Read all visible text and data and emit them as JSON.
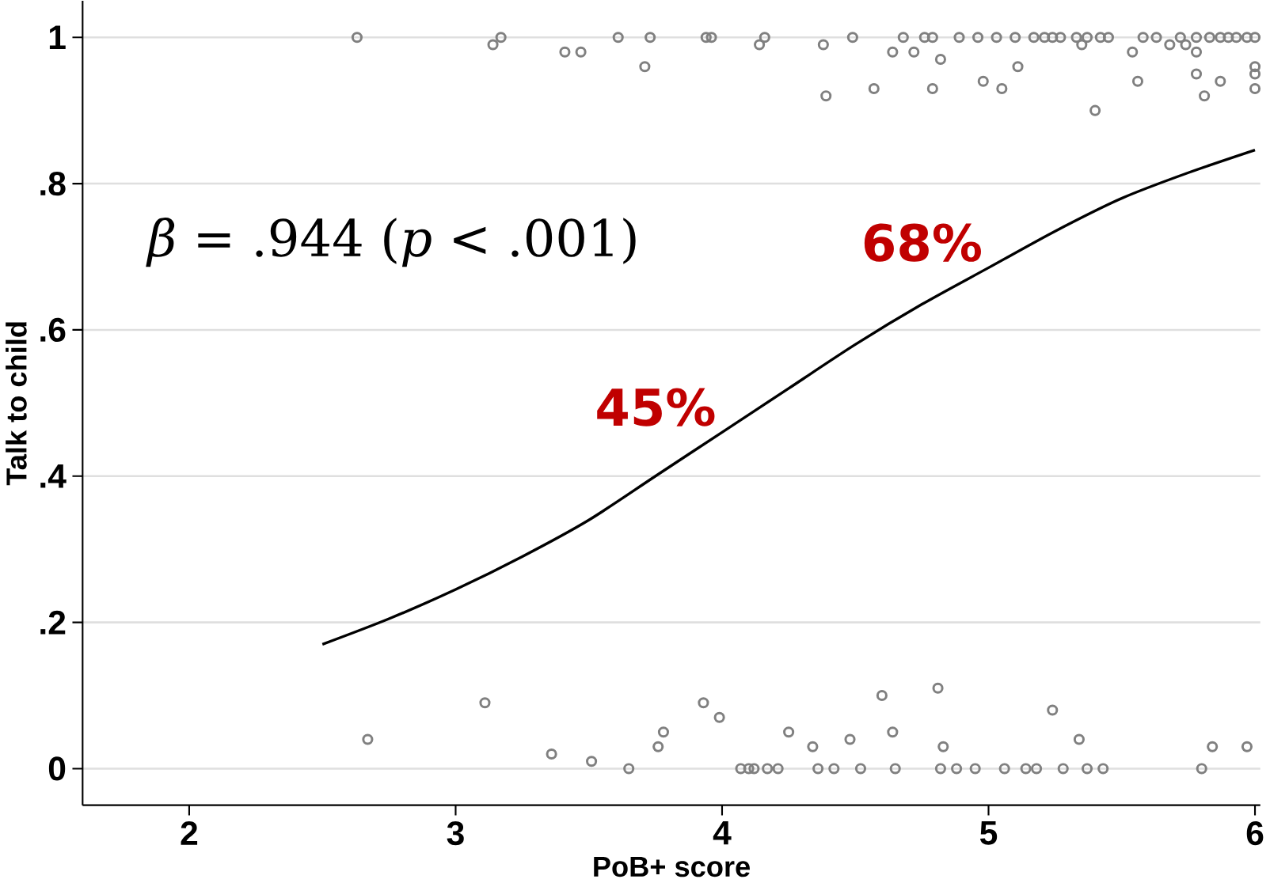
{
  "chart_data": {
    "type": "scatter",
    "xlabel": "PoB+ score",
    "ylabel": "Talk to child",
    "xlim": [
      1.6,
      6.02
    ],
    "ylim": [
      -0.05,
      1.05
    ],
    "xticks": [
      2,
      3,
      4,
      5,
      6
    ],
    "yticks": [
      0,
      {
        "value": 0.2,
        "label": ".2"
      },
      {
        "value": 0.4,
        "label": ".4"
      },
      {
        "value": 0.6,
        "label": ".6"
      },
      {
        "value": 0.8,
        "label": ".8"
      },
      1
    ],
    "grid": "y",
    "annotations": [
      "*β* = .944 (*p* < .001)",
      {
        "text": "45%",
        "x": 4,
        "y": 0.46
      },
      {
        "text": "68%",
        "x": 5,
        "y": 0.685
      }
    ],
    "series": [
      {
        "type": "scatter",
        "color": "#808080",
        "marker": "circle",
        "x": [
          2.63,
          3.14,
          3.17,
          3.41,
          3.47,
          3.61,
          3.73,
          3.71,
          3.94,
          3.96,
          4.14,
          4.16,
          4.38,
          4.39,
          4.49,
          4.57,
          4.64,
          4.68,
          4.72,
          4.76,
          4.79,
          4.82,
          4.79,
          4.89,
          4.96,
          5.03,
          4.98,
          5.05,
          5.1,
          5.11,
          5.17,
          5.21,
          5.24,
          5.27,
          5.33,
          5.35,
          5.37,
          5.42,
          5.45,
          5.4,
          5.54,
          5.56,
          5.58,
          5.63,
          5.68,
          5.72,
          5.74,
          5.78,
          5.78,
          5.78,
          5.81,
          5.87,
          5.83,
          5.87,
          5.9,
          5.93,
          5.97,
          6,
          6,
          6,
          6,
          2.67,
          3.11,
          3.36,
          3.51,
          3.65,
          3.76,
          3.78,
          3.93,
          3.99,
          4.07,
          4.1,
          4.12,
          4.17,
          4.21,
          4.25,
          4.34,
          4.36,
          4.42,
          4.48,
          4.52,
          4.6,
          4.64,
          4.65,
          4.81,
          4.83,
          4.82,
          4.88,
          4.95,
          5.06,
          5.14,
          5.18,
          5.24,
          5.28,
          5.34,
          5.37,
          5.43,
          5.8,
          5.84,
          5.97
        ],
        "values": [
          1,
          0.99,
          1,
          0.98,
          0.98,
          1,
          1,
          0.96,
          1,
          1,
          0.99,
          1,
          0.99,
          0.92,
          1,
          0.93,
          0.98,
          1,
          0.98,
          1,
          1,
          0.97,
          0.93,
          1,
          1,
          1,
          0.94,
          0.93,
          1,
          0.96,
          1,
          1,
          1,
          1,
          1,
          0.99,
          1,
          1,
          1,
          0.9,
          0.98,
          0.94,
          1,
          1,
          0.99,
          1,
          0.99,
          1,
          0.98,
          0.95,
          0.92,
          0.94,
          1,
          1,
          1,
          1,
          1,
          1,
          0.96,
          0.95,
          0.93,
          0.04,
          0.09,
          0.02,
          0.01,
          0,
          0.03,
          0.05,
          0.09,
          0.07,
          0,
          0,
          0,
          0,
          0,
          0.05,
          0.03,
          0,
          0,
          0.04,
          0,
          0.1,
          0.05,
          0,
          0.11,
          0.03,
          0,
          0,
          0,
          0,
          0,
          0,
          0.08,
          0,
          0.04,
          0,
          0,
          0,
          0.03,
          0.03
        ]
      },
      {
        "type": "line",
        "color": "#000000",
        "line_style": "solid",
        "x": [
          2.5,
          2.75,
          3,
          3.25,
          3.5,
          3.75,
          4,
          4.25,
          4.5,
          4.75,
          5,
          5.25,
          5.5,
          5.75,
          6
        ],
        "values": [
          0.17,
          0.205,
          0.245,
          0.29,
          0.34,
          0.4,
          0.46,
          0.52,
          0.58,
          0.635,
          0.685,
          0.735,
          0.78,
          0.815,
          0.846
        ]
      }
    ]
  }
}
